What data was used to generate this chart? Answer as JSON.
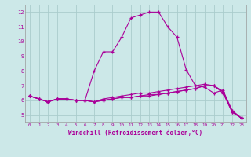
{
  "xlabel": "Windchill (Refroidissement éolien,°C)",
  "background_color": "#cce8e8",
  "grid_color": "#aacccc",
  "line_color": "#aa0099",
  "x_hours": [
    0,
    1,
    2,
    3,
    4,
    5,
    6,
    7,
    8,
    9,
    10,
    11,
    12,
    13,
    14,
    15,
    16,
    17,
    18,
    19,
    20,
    21,
    22,
    23
  ],
  "series1": [
    6.3,
    6.1,
    5.9,
    6.1,
    6.1,
    6.0,
    6.0,
    8.0,
    9.3,
    9.3,
    10.3,
    11.6,
    11.8,
    12.0,
    12.0,
    11.0,
    10.3,
    8.1,
    7.0,
    6.9,
    6.5,
    6.7,
    5.3,
    4.8
  ],
  "series2": [
    6.3,
    6.1,
    5.9,
    6.1,
    6.1,
    6.0,
    6.0,
    5.9,
    6.0,
    6.1,
    6.2,
    6.2,
    6.3,
    6.3,
    6.4,
    6.5,
    6.6,
    6.7,
    6.8,
    7.0,
    7.0,
    6.5,
    5.2,
    4.8
  ],
  "series3": [
    6.3,
    6.1,
    5.9,
    6.1,
    6.1,
    6.0,
    6.0,
    5.9,
    6.0,
    6.1,
    6.2,
    6.2,
    6.3,
    6.4,
    6.4,
    6.5,
    6.6,
    6.7,
    6.8,
    7.0,
    7.0,
    6.6,
    5.2,
    4.8
  ],
  "series4": [
    6.3,
    6.1,
    5.9,
    6.1,
    6.1,
    6.0,
    6.0,
    5.9,
    6.1,
    6.2,
    6.3,
    6.4,
    6.5,
    6.5,
    6.6,
    6.7,
    6.8,
    6.9,
    7.0,
    7.1,
    7.0,
    6.6,
    5.3,
    4.8
  ],
  "ylim": [
    4.5,
    12.5
  ],
  "yticks": [
    5,
    6,
    7,
    8,
    9,
    10,
    11,
    12
  ],
  "xlim": [
    -0.5,
    23.5
  ],
  "xticks": [
    0,
    1,
    2,
    3,
    4,
    5,
    6,
    7,
    8,
    9,
    10,
    11,
    12,
    13,
    14,
    15,
    16,
    17,
    18,
    19,
    20,
    21,
    22,
    23
  ]
}
